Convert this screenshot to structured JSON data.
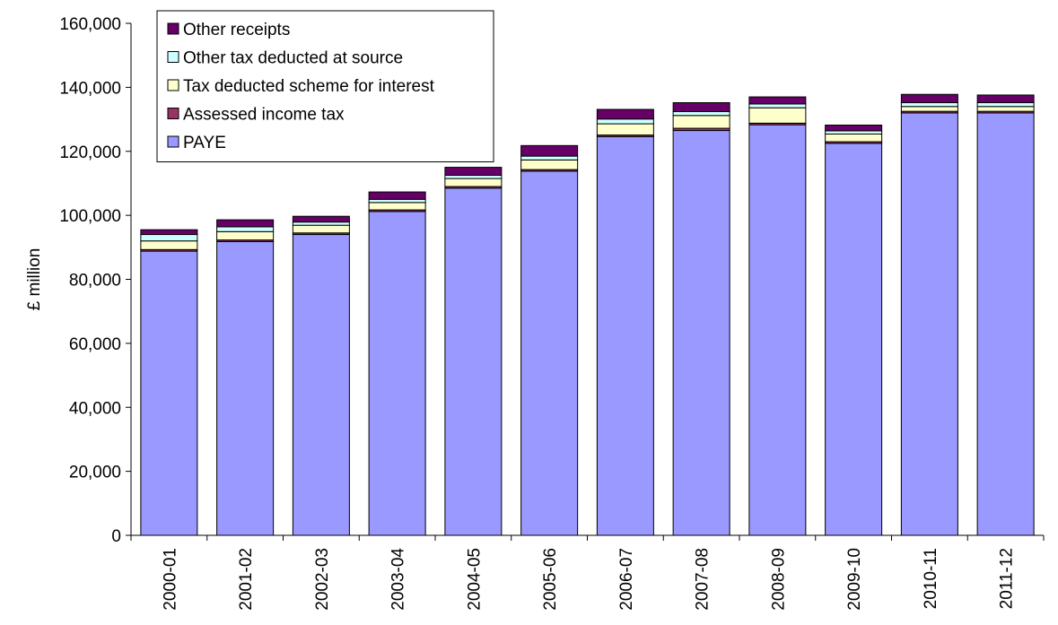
{
  "chart_data": {
    "type": "bar",
    "stacked": true,
    "title": "",
    "xlabel": "",
    "ylabel": "£ million",
    "ylim": [
      0,
      160000
    ],
    "yticks": [
      "0",
      "20,000",
      "40,000",
      "60,000",
      "80,000",
      "100,000",
      "120,000",
      "140,000",
      "160,000"
    ],
    "grid": false,
    "legend_position": "top-left",
    "categories": [
      "2000-01",
      "2001-02",
      "2002-03",
      "2003-04",
      "2004-05",
      "2005-06",
      "2006-07",
      "2007-08",
      "2008-09",
      "2009-10",
      "2010-11",
      "2011-12"
    ],
    "series": [
      {
        "name": "PAYE",
        "color": "#9999ff",
        "values": [
          88800,
          91800,
          94000,
          101200,
          108500,
          113800,
          124600,
          126500,
          128300,
          122500,
          132000,
          132000
        ]
      },
      {
        "name": "Assessed income tax",
        "color": "#993366",
        "values": [
          500,
          500,
          500,
          500,
          500,
          500,
          500,
          700,
          500,
          500,
          500,
          500
        ]
      },
      {
        "name": "Tax deducted scheme for interest",
        "color": "#ffffcc",
        "values": [
          2700,
          2600,
          2400,
          2300,
          2500,
          3000,
          3500,
          4000,
          4800,
          2400,
          1500,
          1500
        ]
      },
      {
        "name": "Other tax deducted at source",
        "color": "#ccffff",
        "values": [
          2000,
          1500,
          1000,
          1000,
          1000,
          1200,
          1500,
          1200,
          1200,
          1000,
          1200,
          1200
        ]
      },
      {
        "name": "Other receipts",
        "color": "#660066",
        "values": [
          1500,
          2200,
          1800,
          2300,
          2500,
          3300,
          3000,
          2800,
          2200,
          1800,
          2600,
          2400
        ]
      }
    ]
  }
}
